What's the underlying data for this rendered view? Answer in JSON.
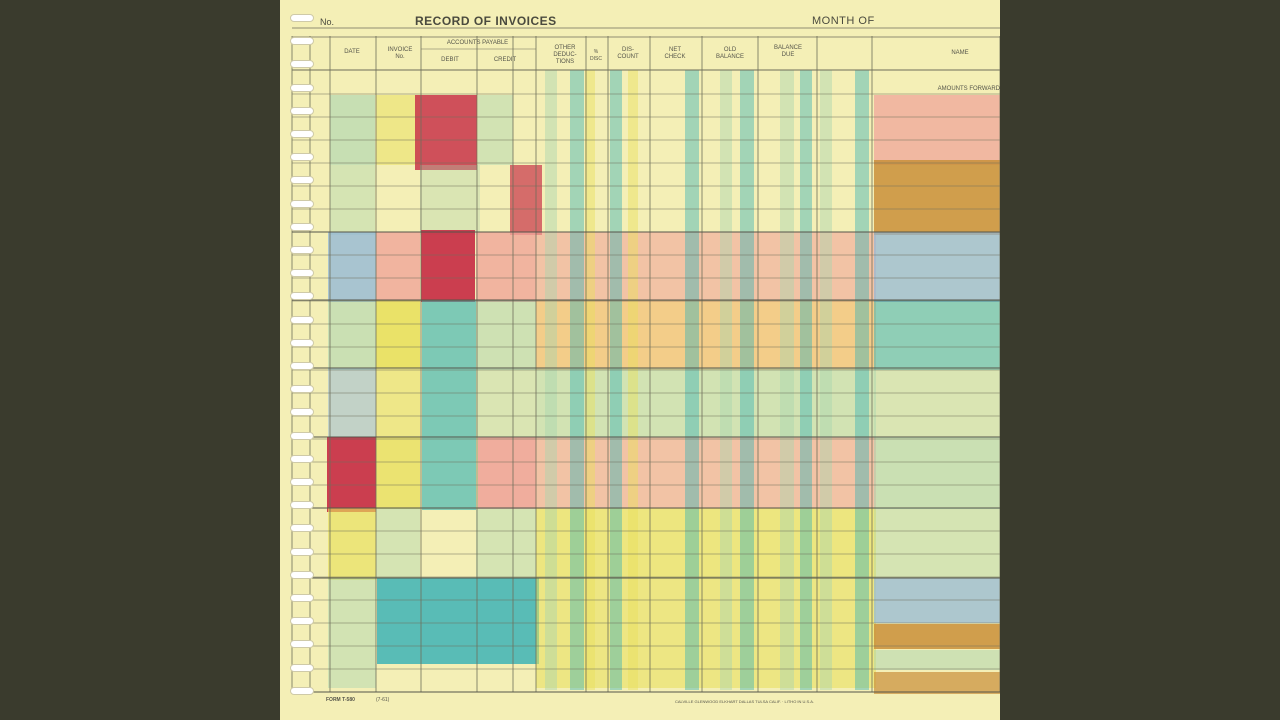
{
  "form": {
    "number_label": "No.",
    "title": "RECORD OF INVOICES",
    "month_label": "MONTH OF",
    "amounts_forward": "AMOUNTS FORWARD",
    "form_number": "FORM T-580",
    "form_date": "(7-61)",
    "imprint": "CALVILLE GLENWOOD ELKHART DALLAS TULSA CALIF. · LITHO IN U.S.A."
  },
  "columns": [
    {
      "key": "date",
      "label": "DATE"
    },
    {
      "key": "invoice",
      "label": "INVOICE\nNo."
    },
    {
      "key": "ap",
      "label": "ACCOUNTS PAYABLE"
    },
    {
      "key": "debit",
      "label": "DEBIT"
    },
    {
      "key": "credit",
      "label": "CREDIT"
    },
    {
      "key": "other",
      "label": "OTHER\nDEDUC-\nTIONS"
    },
    {
      "key": "pct",
      "label": "%\nDISC"
    },
    {
      "key": "discount",
      "label": "DIS-\nCOUNT"
    },
    {
      "key": "net",
      "label": "NET\nCHECK"
    },
    {
      "key": "old",
      "label": "OLD\nBALANCE"
    },
    {
      "key": "due",
      "label": "BALANCE\nDUE"
    },
    {
      "key": "name",
      "label": "NAME"
    }
  ],
  "paint_colors": {
    "red": "#c8344a",
    "teal": "#3db3b6",
    "ochre": "#c98f3a",
    "yellow": "#e8df5a",
    "pink": "#f0a59a",
    "green": "#a8d4b0",
    "blue": "#8fb6d8",
    "orange": "#f3c27a"
  }
}
